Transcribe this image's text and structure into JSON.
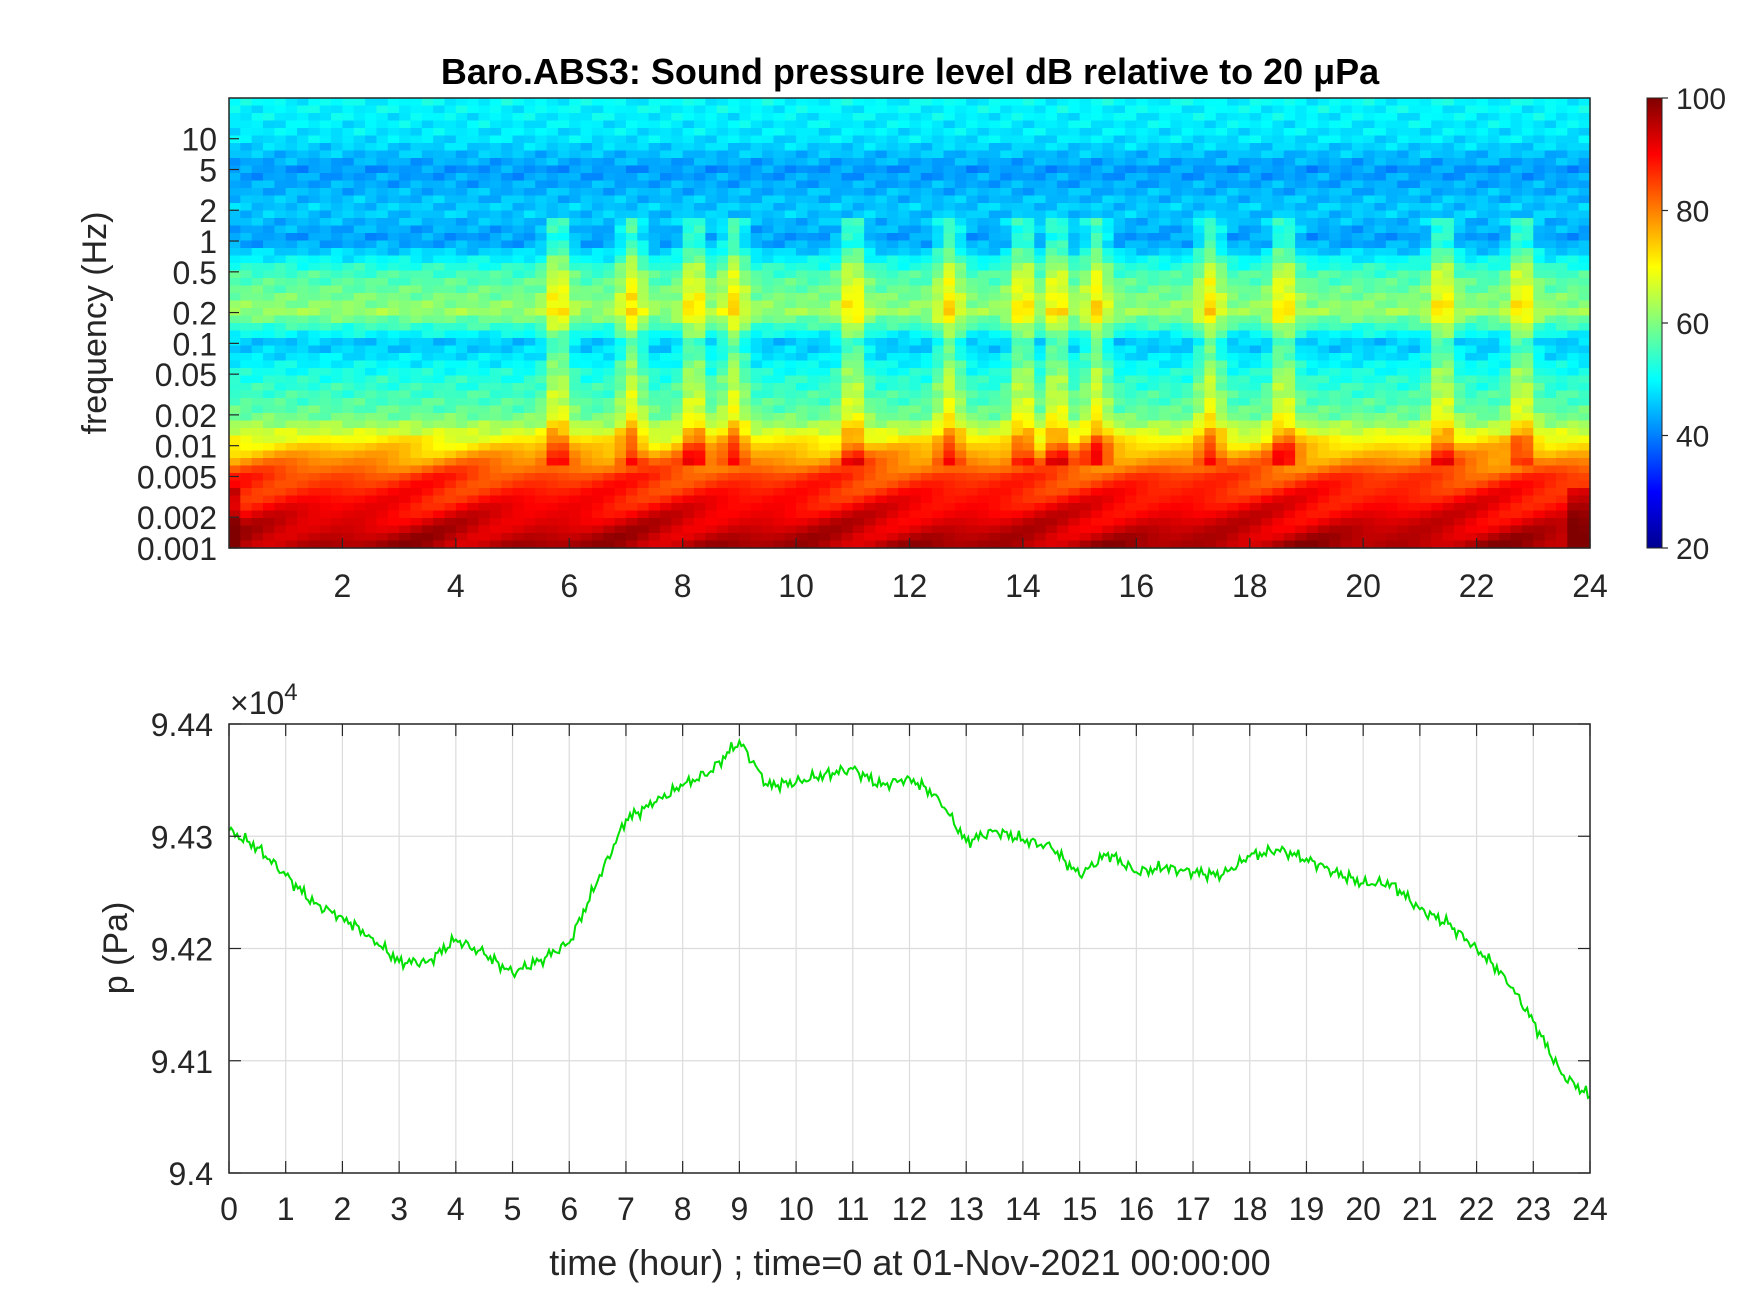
{
  "chart_data": [
    {
      "type": "heatmap",
      "title": "Baro.ABS3: Sound pressure level dB relative to 20 μPa",
      "ylabel": "frequency (Hz)",
      "xlabel": "",
      "xlim": [
        0,
        24
      ],
      "x_ticks": [
        2,
        4,
        6,
        8,
        10,
        12,
        14,
        16,
        18,
        20,
        22,
        24
      ],
      "y_scale": "log",
      "ylim": [
        0.001,
        25
      ],
      "y_ticks": [
        {
          "value": 10,
          "label": "10"
        },
        {
          "value": 5,
          "label": "5"
        },
        {
          "value": 2,
          "label": "2"
        },
        {
          "value": 1,
          "label": "1"
        },
        {
          "value": 0.5,
          "label": "0.5"
        },
        {
          "value": 0.2,
          "label": "0.2"
        },
        {
          "value": 0.1,
          "label": "0.1"
        },
        {
          "value": 0.05,
          "label": "0.05"
        },
        {
          "value": 0.02,
          "label": "0.02"
        },
        {
          "value": 0.01,
          "label": "0.01"
        },
        {
          "value": 0.005,
          "label": "0.005"
        },
        {
          "value": 0.002,
          "label": "0.002"
        },
        {
          "value": 0.001,
          "label": "0.001"
        }
      ],
      "colormap": "jet",
      "colorbar": {
        "range": [
          20,
          100
        ],
        "ticks": [
          20,
          40,
          60,
          80,
          100
        ]
      },
      "level_profile_db": [
        {
          "freq": 25,
          "db": 50
        },
        {
          "freq": 10,
          "db": 48
        },
        {
          "freq": 5,
          "db": 42
        },
        {
          "freq": 2,
          "db": 46
        },
        {
          "freq": 1,
          "db": 42
        },
        {
          "freq": 0.5,
          "db": 55
        },
        {
          "freq": 0.2,
          "db": 62
        },
        {
          "freq": 0.1,
          "db": 45
        },
        {
          "freq": 0.05,
          "db": 52
        },
        {
          "freq": 0.02,
          "db": 58
        },
        {
          "freq": 0.01,
          "db": 73
        },
        {
          "freq": 0.005,
          "db": 85
        },
        {
          "freq": 0.002,
          "db": 92
        },
        {
          "freq": 0.001,
          "db": 97
        }
      ],
      "bursts_hour": [
        5.8,
        7.1,
        8.2,
        8.9,
        11.0,
        12.7,
        14.0,
        14.6,
        15.3,
        17.3,
        18.6,
        21.4,
        22.8
      ]
    },
    {
      "type": "line",
      "xlabel": "time (hour) ; time=0 at 01-Nov-2021 00:00:00",
      "ylabel": "p (Pa)",
      "y_multiplier": "×10",
      "y_multiplier_exp": "4",
      "xlim": [
        0,
        24
      ],
      "ylim": [
        9.4,
        9.44
      ],
      "x_ticks": [
        0,
        1,
        2,
        3,
        4,
        5,
        6,
        7,
        8,
        9,
        10,
        11,
        12,
        13,
        14,
        15,
        16,
        17,
        18,
        19,
        20,
        21,
        22,
        23,
        24
      ],
      "y_ticks": [
        {
          "value": 9.4,
          "label": "9.4"
        },
        {
          "value": 9.41,
          "label": "9.41"
        },
        {
          "value": 9.42,
          "label": "9.42"
        },
        {
          "value": 9.43,
          "label": "9.43"
        },
        {
          "value": 9.44,
          "label": "9.44"
        }
      ],
      "grid": true,
      "line_color": "#00e000",
      "x": [
        0,
        0.5,
        1,
        1.5,
        2,
        2.5,
        3,
        3.5,
        4,
        4.5,
        5,
        5.5,
        6,
        6.5,
        7,
        7.5,
        8,
        8.5,
        9,
        9.5,
        10,
        10.5,
        11,
        11.5,
        12,
        12.5,
        13,
        13.5,
        14,
        14.5,
        15,
        15.5,
        16,
        16.5,
        17,
        17.5,
        18,
        18.5,
        19,
        19.5,
        20,
        20.5,
        21,
        21.5,
        22,
        22.5,
        23,
        23.5,
        24
      ],
      "values": [
        9.4305,
        9.429,
        9.4265,
        9.424,
        9.4228,
        9.421,
        9.4188,
        9.4188,
        9.4208,
        9.4195,
        9.4178,
        9.419,
        9.4205,
        9.426,
        9.4315,
        9.433,
        9.4345,
        9.4358,
        9.4385,
        9.4345,
        9.4348,
        9.4355,
        9.436,
        9.4345,
        9.4352,
        9.4335,
        9.4295,
        9.4305,
        9.4297,
        9.429,
        9.4265,
        9.4285,
        9.4268,
        9.4272,
        9.4268,
        9.4265,
        9.4282,
        9.4288,
        9.428,
        9.4268,
        9.4258,
        9.4258,
        9.4235,
        9.4222,
        9.42,
        9.4175,
        9.4135,
        9.4088,
        9.4068
      ]
    }
  ]
}
